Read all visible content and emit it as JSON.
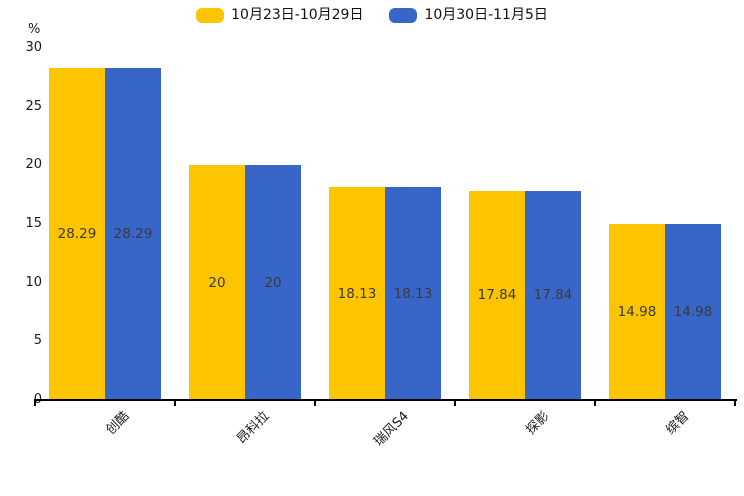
{
  "chart_data": {
    "type": "bar",
    "title": "",
    "xlabel": "",
    "ylabel": "%",
    "categories": [
      "创酷",
      "昂科拉",
      "瑞风S4",
      "探影",
      "缤智"
    ],
    "series": [
      {
        "name": "10月23日-10月29日",
        "color": "#FDC500",
        "values": [
          28.29,
          20,
          18.13,
          17.84,
          14.98
        ]
      },
      {
        "name": "10月30日-11月5日",
        "color": "#3866C8",
        "values": [
          28.29,
          20,
          18.13,
          17.84,
          14.98
        ]
      }
    ],
    "value_labels": [
      [
        "28.29",
        "20",
        "18.13",
        "17.84",
        "14.98"
      ],
      [
        "28.29",
        "20",
        "18.13",
        "17.84",
        "14.98"
      ]
    ],
    "y_ticks": [
      0,
      5,
      10,
      15,
      20,
      25,
      30
    ],
    "ylim": [
      0,
      30
    ],
    "grid": false,
    "legend_position": "top-center",
    "value_label_color": "#3a3a3a",
    "axis_color": "#000000",
    "background_color": "#ffffff"
  }
}
